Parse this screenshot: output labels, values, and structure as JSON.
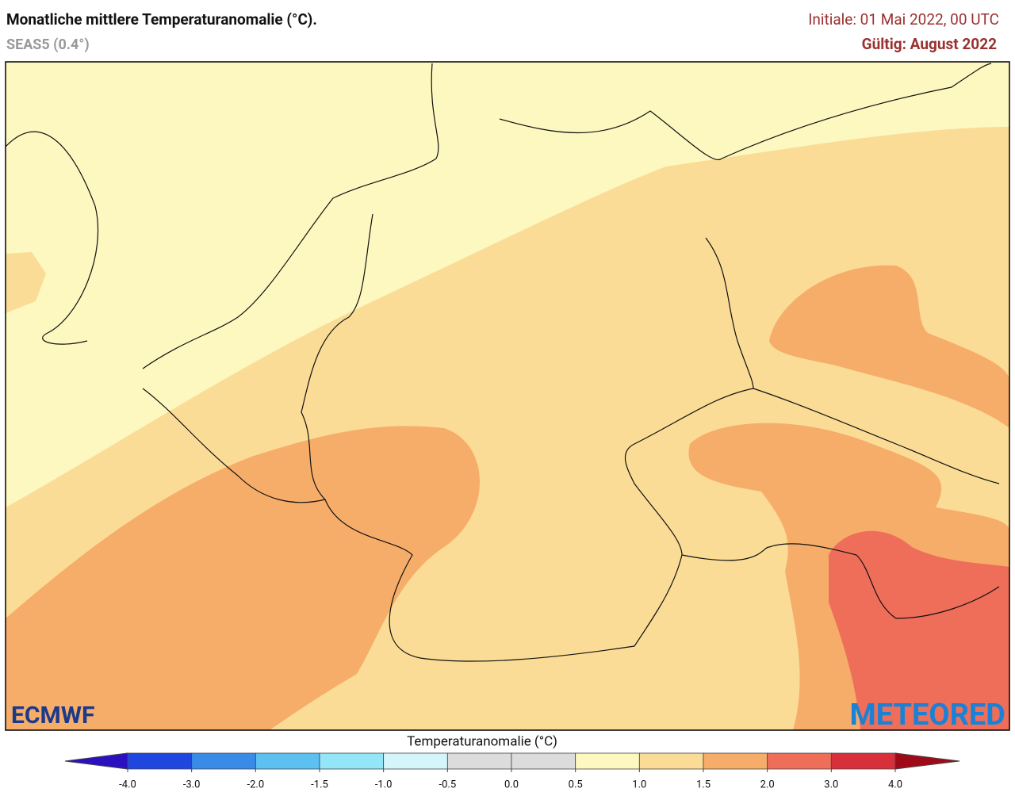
{
  "header": {
    "title": "Monatliche mittlere Temperaturanomalie (°C).",
    "subtitle": "SEAS5 (0.4°)",
    "initial": "Initiale: 01 Mai 2022, 00 UTC",
    "valid": "Gültig: August 2022"
  },
  "logos": {
    "left": "ECMWF",
    "right": "METEORED"
  },
  "colorbar": {
    "label": "Temperaturanomalie (°C)",
    "ticks": [
      {
        "value": -4,
        "label": "-4.0"
      },
      {
        "value": -3,
        "label": "-3.0"
      },
      {
        "value": -2,
        "label": "-2.0"
      },
      {
        "value": -1.5,
        "label": "-1.5"
      },
      {
        "value": -1,
        "label": "-1.0"
      },
      {
        "value": -0.5,
        "label": "-0.5"
      },
      {
        "value": 0,
        "label": "0.0"
      },
      {
        "value": 0.5,
        "label": "0.5"
      },
      {
        "value": 1,
        "label": "1.0"
      },
      {
        "value": 1.5,
        "label": "1.5"
      },
      {
        "value": 2,
        "label": "2.0"
      },
      {
        "value": 3,
        "label": "3.0"
      },
      {
        "value": 4,
        "label": "4.0"
      }
    ],
    "colors": [
      "#2046e0",
      "#3a8ae8",
      "#5cc0f0",
      "#92e6f8",
      "#d4f6fa",
      "#dcdcdc",
      "#dcdcdc",
      "#fdf8c0",
      "#fbdc96",
      "#f6ad6a",
      "#ef6e5a",
      "#d8303a"
    ],
    "under_color": "#2a10c0",
    "over_color": "#a00a18"
  }
}
